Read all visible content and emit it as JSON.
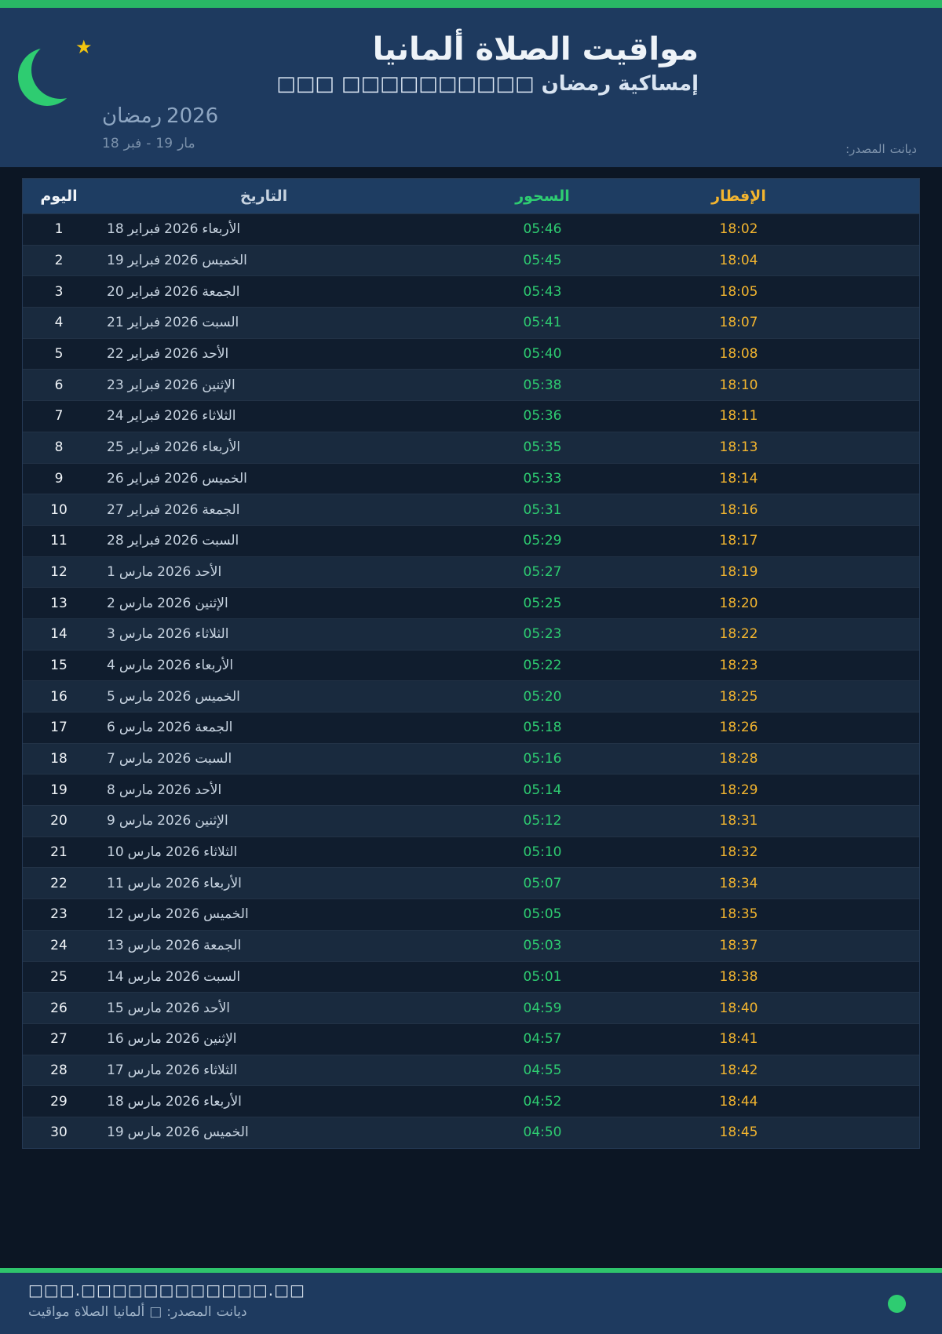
{
  "colors": {
    "accent_green": "#2ecc71",
    "accent_amber": "#f3b52f",
    "header_bg": "#1e3a5f",
    "body_bg": "#0c1624",
    "row_dark": "#101d2e",
    "row_light": "#192a3e",
    "table_head_bg": "#1e3d62"
  },
  "header": {
    "title": "مواقيت الصلاة ألمانيا",
    "subtitle": "إمساكية رمضان □□□□□□□□□□ □□□",
    "season_tokens": [
      "رمضان",
      "2026"
    ],
    "range_tokens": [
      "18",
      "فبر",
      "-",
      "19",
      "مار"
    ],
    "source_tokens": [
      "المصدر:",
      "ديانت"
    ],
    "moon_icon": "crescent-moon-icon",
    "star_icon": "star-icon"
  },
  "table": {
    "headers": {
      "day": "اليوم",
      "date": "التاريخ",
      "suhoor": "السحور",
      "iftar": "الإفطار"
    },
    "rows": [
      {
        "day": "1",
        "date_tokens": [
          "18",
          "فبراير",
          "2026",
          "الأربعاء"
        ],
        "suhoor": "05:46",
        "iftar": "18:02"
      },
      {
        "day": "2",
        "date_tokens": [
          "19",
          "فبراير",
          "2026",
          "الخميس"
        ],
        "suhoor": "05:45",
        "iftar": "18:04"
      },
      {
        "day": "3",
        "date_tokens": [
          "20",
          "فبراير",
          "2026",
          "الجمعة"
        ],
        "suhoor": "05:43",
        "iftar": "18:05"
      },
      {
        "day": "4",
        "date_tokens": [
          "21",
          "فبراير",
          "2026",
          "السبت"
        ],
        "suhoor": "05:41",
        "iftar": "18:07"
      },
      {
        "day": "5",
        "date_tokens": [
          "22",
          "فبراير",
          "2026",
          "الأحد"
        ],
        "suhoor": "05:40",
        "iftar": "18:08"
      },
      {
        "day": "6",
        "date_tokens": [
          "23",
          "فبراير",
          "2026",
          "الإثنين"
        ],
        "suhoor": "05:38",
        "iftar": "18:10"
      },
      {
        "day": "7",
        "date_tokens": [
          "24",
          "فبراير",
          "2026",
          "الثلاثاء"
        ],
        "suhoor": "05:36",
        "iftar": "18:11"
      },
      {
        "day": "8",
        "date_tokens": [
          "25",
          "فبراير",
          "2026",
          "الأربعاء"
        ],
        "suhoor": "05:35",
        "iftar": "18:13"
      },
      {
        "day": "9",
        "date_tokens": [
          "26",
          "فبراير",
          "2026",
          "الخميس"
        ],
        "suhoor": "05:33",
        "iftar": "18:14"
      },
      {
        "day": "10",
        "date_tokens": [
          "27",
          "فبراير",
          "2026",
          "الجمعة"
        ],
        "suhoor": "05:31",
        "iftar": "18:16"
      },
      {
        "day": "11",
        "date_tokens": [
          "28",
          "فبراير",
          "2026",
          "السبت"
        ],
        "suhoor": "05:29",
        "iftar": "18:17"
      },
      {
        "day": "12",
        "date_tokens": [
          "1",
          "مارس",
          "2026",
          "الأحد"
        ],
        "suhoor": "05:27",
        "iftar": "18:19"
      },
      {
        "day": "13",
        "date_tokens": [
          "2",
          "مارس",
          "2026",
          "الإثنين"
        ],
        "suhoor": "05:25",
        "iftar": "18:20"
      },
      {
        "day": "14",
        "date_tokens": [
          "3",
          "مارس",
          "2026",
          "الثلاثاء"
        ],
        "suhoor": "05:23",
        "iftar": "18:22"
      },
      {
        "day": "15",
        "date_tokens": [
          "4",
          "مارس",
          "2026",
          "الأربعاء"
        ],
        "suhoor": "05:22",
        "iftar": "18:23"
      },
      {
        "day": "16",
        "date_tokens": [
          "5",
          "مارس",
          "2026",
          "الخميس"
        ],
        "suhoor": "05:20",
        "iftar": "18:25"
      },
      {
        "day": "17",
        "date_tokens": [
          "6",
          "مارس",
          "2026",
          "الجمعة"
        ],
        "suhoor": "05:18",
        "iftar": "18:26"
      },
      {
        "day": "18",
        "date_tokens": [
          "7",
          "مارس",
          "2026",
          "السبت"
        ],
        "suhoor": "05:16",
        "iftar": "18:28"
      },
      {
        "day": "19",
        "date_tokens": [
          "8",
          "مارس",
          "2026",
          "الأحد"
        ],
        "suhoor": "05:14",
        "iftar": "18:29"
      },
      {
        "day": "20",
        "date_tokens": [
          "9",
          "مارس",
          "2026",
          "الإثنين"
        ],
        "suhoor": "05:12",
        "iftar": "18:31"
      },
      {
        "day": "21",
        "date_tokens": [
          "10",
          "مارس",
          "2026",
          "الثلاثاء"
        ],
        "suhoor": "05:10",
        "iftar": "18:32"
      },
      {
        "day": "22",
        "date_tokens": [
          "11",
          "مارس",
          "2026",
          "الأربعاء"
        ],
        "suhoor": "05:07",
        "iftar": "18:34"
      },
      {
        "day": "23",
        "date_tokens": [
          "12",
          "مارس",
          "2026",
          "الخميس"
        ],
        "suhoor": "05:05",
        "iftar": "18:35"
      },
      {
        "day": "24",
        "date_tokens": [
          "13",
          "مارس",
          "2026",
          "الجمعة"
        ],
        "suhoor": "05:03",
        "iftar": "18:37"
      },
      {
        "day": "25",
        "date_tokens": [
          "14",
          "مارس",
          "2026",
          "السبت"
        ],
        "suhoor": "05:01",
        "iftar": "18:38"
      },
      {
        "day": "26",
        "date_tokens": [
          "15",
          "مارس",
          "2026",
          "الأحد"
        ],
        "suhoor": "04:59",
        "iftar": "18:40"
      },
      {
        "day": "27",
        "date_tokens": [
          "16",
          "مارس",
          "2026",
          "الإثنين"
        ],
        "suhoor": "04:57",
        "iftar": "18:41"
      },
      {
        "day": "28",
        "date_tokens": [
          "17",
          "مارس",
          "2026",
          "الثلاثاء"
        ],
        "suhoor": "04:55",
        "iftar": "18:42"
      },
      {
        "day": "29",
        "date_tokens": [
          "18",
          "مارس",
          "2026",
          "الأربعاء"
        ],
        "suhoor": "04:52",
        "iftar": "18:44"
      },
      {
        "day": "30",
        "date_tokens": [
          "19",
          "مارس",
          "2026",
          "الخميس"
        ],
        "suhoor": "04:50",
        "iftar": "18:45"
      }
    ]
  },
  "footer": {
    "url": "□□□.□□□□□□□□□□□□.□□",
    "line_tokens": [
      "مواقيت",
      "الصلاة",
      "ألمانيا",
      "□",
      "المصدر:",
      "ديانت"
    ],
    "status_dot_color": "#2ecc71"
  }
}
